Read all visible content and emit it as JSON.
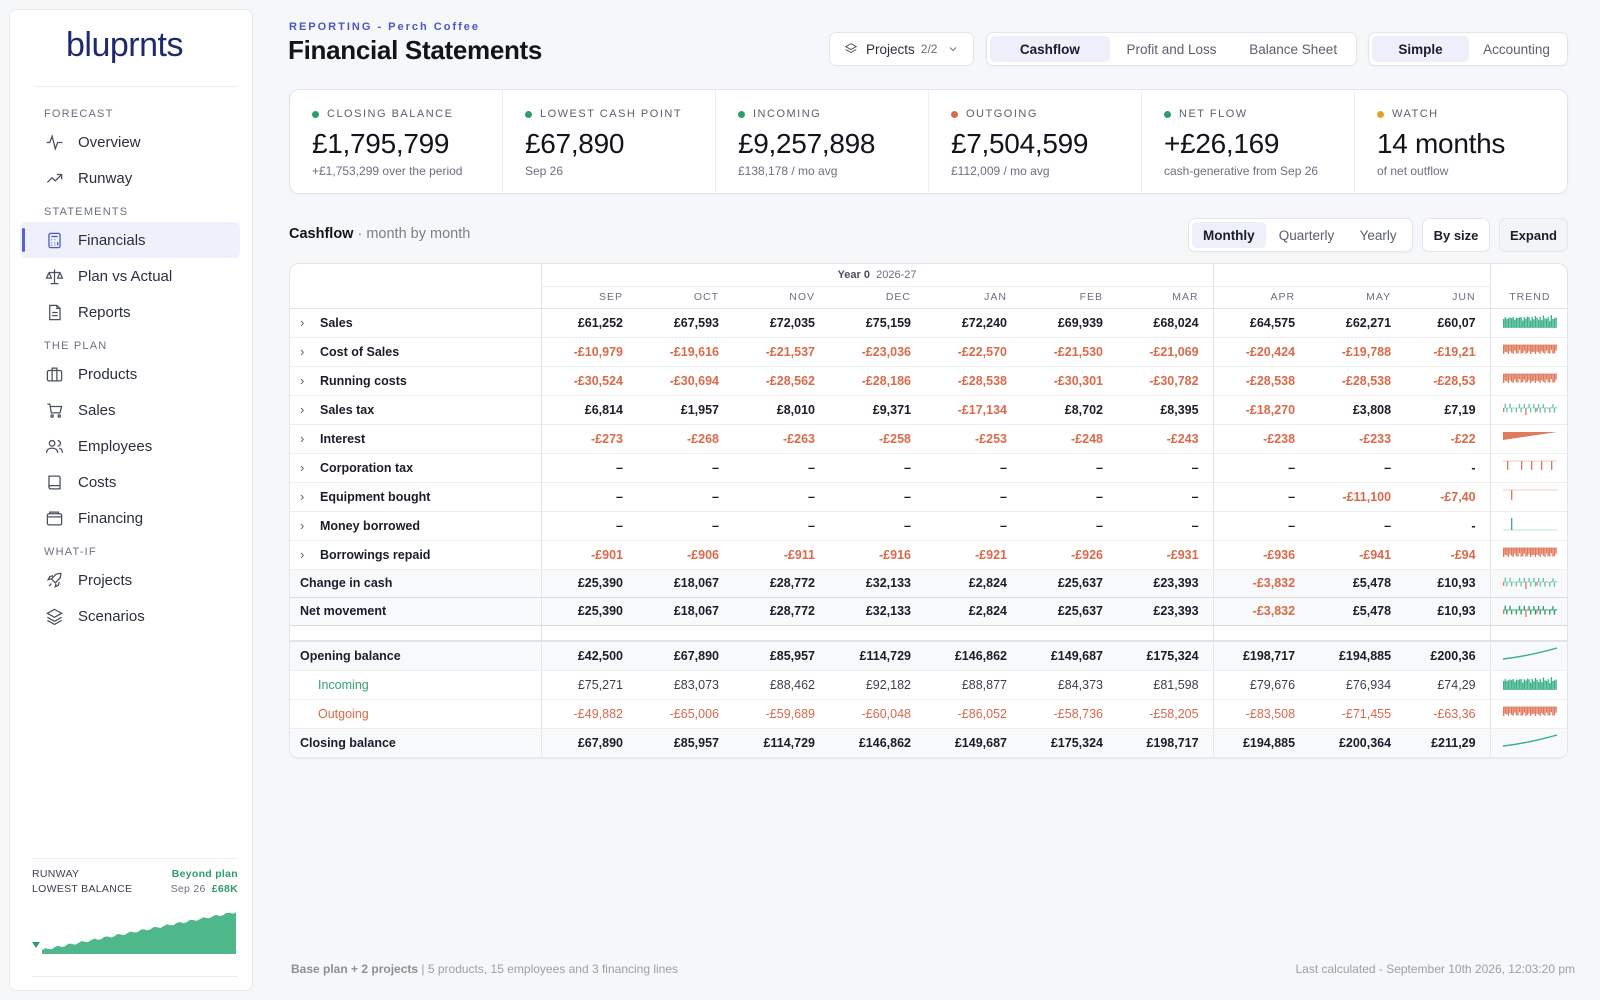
{
  "sidebar": {
    "logo": "bluprnts",
    "sections": [
      {
        "title": "FORECAST",
        "items": [
          {
            "label": "Overview",
            "icon": "pulse-icon"
          },
          {
            "label": "Runway",
            "icon": "trending-up-icon"
          }
        ]
      },
      {
        "title": "STATEMENTS",
        "items": [
          {
            "label": "Financials",
            "icon": "calculator-icon",
            "active": true
          },
          {
            "label": "Plan vs Actual",
            "icon": "scale-icon"
          },
          {
            "label": "Reports",
            "icon": "document-icon"
          }
        ]
      },
      {
        "title": "THE PLAN",
        "items": [
          {
            "label": "Products",
            "icon": "briefcase-icon"
          },
          {
            "label": "Sales",
            "icon": "cart-icon"
          },
          {
            "label": "Employees",
            "icon": "users-icon"
          },
          {
            "label": "Costs",
            "icon": "book-icon"
          },
          {
            "label": "Financing",
            "icon": "wallet-icon"
          }
        ]
      },
      {
        "title": "WHAT-IF",
        "items": [
          {
            "label": "Projects",
            "icon": "rocket-icon"
          },
          {
            "label": "Scenarios",
            "icon": "layers-icon"
          }
        ]
      }
    ],
    "runway": {
      "label": "RUNWAY",
      "status": "Beyond plan",
      "lowest_label": "LOWEST BALANCE",
      "lowest_date": "Sep 26",
      "lowest_value": "£68K",
      "accent": "#4fb88a"
    }
  },
  "header": {
    "breadcrumb": "REPORTING - Perch Coffee",
    "title": "Financial Statements",
    "projects_label": "Projects",
    "projects_count": "2/2",
    "statement_tabs": [
      "Cashflow",
      "Profit and Loss",
      "Balance Sheet"
    ],
    "statement_selected": 0,
    "mode_tabs": [
      "Simple",
      "Accounting"
    ],
    "mode_selected": 0
  },
  "kpis": [
    {
      "label": "CLOSING BALANCE",
      "value": "£1,795,799",
      "sub": "+£1,753,299 over the period",
      "dot": "#2f9c6b"
    },
    {
      "label": "LOWEST CASH POINT",
      "value": "£67,890",
      "sub": "Sep 26",
      "dot": "#2f9c6b"
    },
    {
      "label": "INCOMING",
      "value": "£9,257,898",
      "sub": "£138,178 / mo avg",
      "dot": "#2f9c6b"
    },
    {
      "label": "OUTGOING",
      "value": "£7,504,599",
      "sub": "£112,009 / mo avg",
      "dot": "#d96a4a"
    },
    {
      "label": "NET FLOW",
      "value": "+£26,169",
      "sub": "cash-generative from Sep 26",
      "dot": "#2f9c6b"
    },
    {
      "label": "WATCH",
      "value": "14 months",
      "sub": "of net outflow",
      "dot": "#e0a528"
    }
  ],
  "cashflow": {
    "title": "Cashflow",
    "subtitle": "· month by month",
    "period_tabs": [
      "Monthly",
      "Quarterly",
      "Yearly"
    ],
    "period_selected": 0,
    "by_size": "By size",
    "expand": "Expand",
    "year_label": "Year 0",
    "year_range": "2026-27",
    "months": [
      "SEP",
      "OCT",
      "NOV",
      "DEC",
      "JAN",
      "FEB",
      "MAR",
      "APR",
      "MAY",
      "JUN"
    ],
    "trend_label": "TREND",
    "rows": [
      {
        "label": "Sales",
        "values": [
          "£61,252",
          "£67,593",
          "£72,035",
          "£75,159",
          "£72,240",
          "£69,939",
          "£68,024",
          "£64,575",
          "£62,271",
          "£60,07"
        ],
        "trend": "pos"
      },
      {
        "label": "Cost of Sales",
        "values": [
          "-£10,979",
          "-£19,616",
          "-£21,537",
          "-£23,036",
          "-£22,570",
          "-£21,530",
          "-£21,069",
          "-£20,424",
          "-£19,788",
          "-£19,21"
        ],
        "trend": "neg"
      },
      {
        "label": "Running costs",
        "values": [
          "-£30,524",
          "-£30,694",
          "-£28,562",
          "-£28,186",
          "-£28,538",
          "-£30,301",
          "-£30,782",
          "-£28,538",
          "-£28,538",
          "-£28,53"
        ],
        "trend": "neg"
      },
      {
        "label": "Sales tax",
        "values": [
          "£6,814",
          "£1,957",
          "£8,010",
          "£9,371",
          "-£17,134",
          "£8,702",
          "£8,395",
          "-£18,270",
          "£3,808",
          "£7,19"
        ],
        "trend": "mixed"
      },
      {
        "label": "Interest",
        "values": [
          "-£273",
          "-£268",
          "-£263",
          "-£258",
          "-£253",
          "-£248",
          "-£243",
          "-£238",
          "-£233",
          "-£22"
        ],
        "trend": "wedge"
      },
      {
        "label": "Corporation tax",
        "values": [
          "–",
          "–",
          "–",
          "–",
          "–",
          "–",
          "–",
          "–",
          "–",
          "-"
        ],
        "trend": "spikes"
      },
      {
        "label": "Equipment bought",
        "values": [
          "–",
          "–",
          "–",
          "–",
          "–",
          "–",
          "–",
          "–",
          "-£11,100",
          "-£7,40"
        ],
        "trend": "single"
      },
      {
        "label": "Money borrowed",
        "values": [
          "–",
          "–",
          "–",
          "–",
          "–",
          "–",
          "–",
          "–",
          "–",
          "-"
        ],
        "trend": "up-single"
      },
      {
        "label": "Borrowings repaid",
        "values": [
          "-£901",
          "-£906",
          "-£911",
          "-£916",
          "-£921",
          "-£926",
          "-£931",
          "-£936",
          "-£941",
          "-£94"
        ],
        "trend": "neg"
      }
    ],
    "totals": [
      {
        "label": "Change in cash",
        "values": [
          "£25,390",
          "£18,067",
          "£28,772",
          "£32,133",
          "£2,824",
          "£25,637",
          "£23,393",
          "-£3,832",
          "£5,478",
          "£10,93"
        ],
        "trend": "mixed-light"
      },
      {
        "label": "Net movement",
        "values": [
          "£25,390",
          "£18,067",
          "£28,772",
          "£32,133",
          "£2,824",
          "£25,637",
          "£23,393",
          "-£3,832",
          "£5,478",
          "£10,93"
        ],
        "trend": "mixed-dark"
      }
    ],
    "balances": [
      {
        "label": "Opening balance",
        "values": [
          "£42,500",
          "£67,890",
          "£85,957",
          "£114,729",
          "£146,862",
          "£149,687",
          "£175,324",
          "£198,717",
          "£194,885",
          "£200,36"
        ],
        "trend": "line",
        "kind": "bal"
      },
      {
        "label": "Incoming",
        "values": [
          "£75,271",
          "£83,073",
          "£88,462",
          "£92,182",
          "£88,877",
          "£84,373",
          "£81,598",
          "£79,676",
          "£76,934",
          "£74,29"
        ],
        "trend": "pos",
        "kind": "inc"
      },
      {
        "label": "Outgoing",
        "values": [
          "-£49,882",
          "-£65,006",
          "-£59,689",
          "-£60,048",
          "-£86,052",
          "-£58,736",
          "-£58,205",
          "-£83,508",
          "-£71,455",
          "-£63,36"
        ],
        "trend": "neg",
        "kind": "out"
      },
      {
        "label": "Closing balance",
        "values": [
          "£67,890",
          "£85,957",
          "£114,729",
          "£146,862",
          "£149,687",
          "£175,324",
          "£198,717",
          "£194,885",
          "£200,364",
          "£211,29"
        ],
        "trend": "line",
        "kind": "bal"
      }
    ]
  },
  "footer": {
    "plan": "Base plan + 2 projects",
    "detail": "| 5 products, 15 employees and 3 financing lines",
    "last_calc": "Last calculated - September 10th 2026, 12:03:20 pm"
  }
}
